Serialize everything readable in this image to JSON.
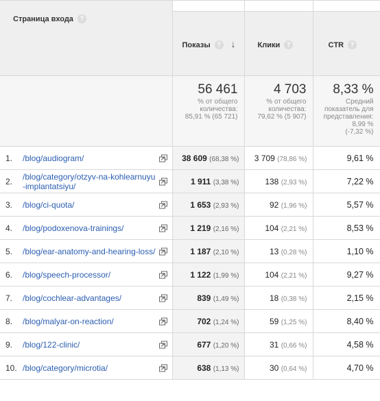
{
  "header": {
    "dimension_label": "Страница входа",
    "metrics": [
      {
        "label": "Показы",
        "sorted": true
      },
      {
        "label": "Клики",
        "sorted": false
      },
      {
        "label": "CTR",
        "sorted": false
      }
    ]
  },
  "totals": {
    "impressions": {
      "value": "56 461",
      "line1": "% от общего",
      "line2": "количества:",
      "line3": "85,91 % (65 721)"
    },
    "clicks": {
      "value": "4 703",
      "line1": "% от общего",
      "line2": "количества:",
      "line3": "79,62 % (5 907)"
    },
    "ctr": {
      "value": "8,33 %",
      "line1": "Средний",
      "line2": "показатель для",
      "line3": "представления:",
      "line4": "8,99 %",
      "line5": "(-7,32 %)"
    }
  },
  "rows": [
    {
      "num": "1.",
      "page": "/blog/audiogram/",
      "impressions": "38 609",
      "impressions_pct": "(68,38 %)",
      "clicks": "3 709",
      "clicks_pct": "(78,86 %)",
      "ctr": "9,61 %"
    },
    {
      "num": "2.",
      "page": "/blog/category/otzyv-na-kohlearnuyu-implantatsiyu/",
      "impressions": "1 911",
      "impressions_pct": "(3,38 %)",
      "clicks": "138",
      "clicks_pct": "(2,93 %)",
      "ctr": "7,22 %"
    },
    {
      "num": "3.",
      "page": "/blog/ci-quota/",
      "impressions": "1 653",
      "impressions_pct": "(2,93 %)",
      "clicks": "92",
      "clicks_pct": "(1,96 %)",
      "ctr": "5,57 %"
    },
    {
      "num": "4.",
      "page": "/blog/podoxenova-trainings/",
      "impressions": "1 219",
      "impressions_pct": "(2,16 %)",
      "clicks": "104",
      "clicks_pct": "(2,21 %)",
      "ctr": "8,53 %"
    },
    {
      "num": "5.",
      "page": "/blog/ear-anatomy-and-hearing-loss/",
      "impressions": "1 187",
      "impressions_pct": "(2,10 %)",
      "clicks": "13",
      "clicks_pct": "(0,28 %)",
      "ctr": "1,10 %"
    },
    {
      "num": "6.",
      "page": "/blog/speech-processor/",
      "impressions": "1 122",
      "impressions_pct": "(1,99 %)",
      "clicks": "104",
      "clicks_pct": "(2,21 %)",
      "ctr": "9,27 %"
    },
    {
      "num": "7.",
      "page": "/blog/cochlear-advantages/",
      "impressions": "839",
      "impressions_pct": "(1,49 %)",
      "clicks": "18",
      "clicks_pct": "(0,38 %)",
      "ctr": "2,15 %"
    },
    {
      "num": "8.",
      "page": "/blog/malyar-on-reaction/",
      "impressions": "702",
      "impressions_pct": "(1,24 %)",
      "clicks": "59",
      "clicks_pct": "(1,25 %)",
      "ctr": "8,40 %"
    },
    {
      "num": "9.",
      "page": "/blog/122-clinic/",
      "impressions": "677",
      "impressions_pct": "(1,20 %)",
      "clicks": "31",
      "clicks_pct": "(0,66 %)",
      "ctr": "4,58 %"
    },
    {
      "num": "10.",
      "page": "/blog/category/microtia/",
      "impressions": "638",
      "impressions_pct": "(1,13 %)",
      "clicks": "30",
      "clicks_pct": "(0,64 %)",
      "ctr": "4,70 %"
    }
  ],
  "icons": {
    "help": "question-circle-icon",
    "sort": "arrow-down-icon",
    "external": "open-external-icon"
  },
  "help_glyph": "?",
  "sort_glyph": "↓"
}
